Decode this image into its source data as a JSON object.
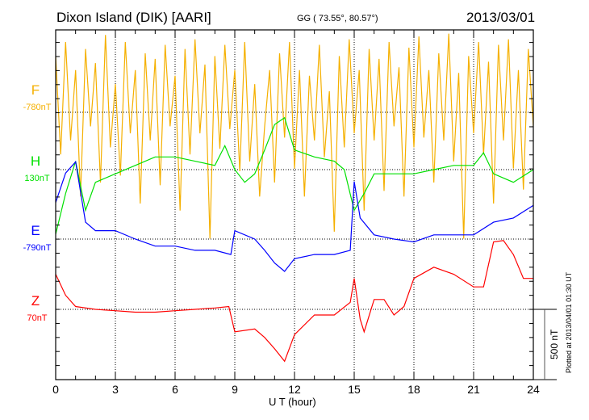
{
  "header": {
    "station": "Dixon Island (DIK)  [AARI]",
    "coords": "GG ( 73.55°,  80.57°)",
    "date": "2013/03/01"
  },
  "footer": {
    "plotted": "Plotted at 2013/04/01 01:30 UT"
  },
  "chart_data": {
    "type": "line",
    "xlabel": "U T (hour)",
    "xlim": [
      0,
      24
    ],
    "xticks": [
      "0",
      "3",
      "6",
      "9",
      "12",
      "15",
      "18",
      "21",
      "24"
    ],
    "scale_bar": "500 nT",
    "nT_per_minor_tick": 100,
    "series": [
      {
        "name": "F",
        "baseline": "-780nT",
        "color": "#f5b000",
        "x_step": 0.25,
        "values": [
          400,
          -300,
          500,
          -200,
          300,
          -600,
          450,
          -100,
          350,
          -500,
          550,
          -250,
          200,
          -450,
          500,
          -150,
          300,
          -650,
          420,
          -200,
          380,
          -520,
          480,
          -100,
          260,
          -700,
          450,
          -300,
          520,
          -150,
          340,
          -900,
          400,
          -260,
          480,
          -120,
          300,
          -420,
          500,
          -350,
          200,
          -600,
          -100,
          300,
          -500,
          420,
          -180,
          500,
          -400,
          300,
          -600,
          260,
          -200,
          480,
          -320,
          150,
          -850,
          400,
          -250,
          520,
          -150,
          300,
          -700,
          450,
          -200,
          380,
          -560,
          500,
          -100,
          320,
          -600,
          460,
          -250,
          540,
          -180,
          300,
          -500,
          420,
          -200,
          560,
          -350,
          280,
          -900,
          400,
          -150,
          500,
          -300,
          360,
          -650,
          480,
          -200,
          520,
          -400,
          300,
          -550,
          450,
          -100
        ]
      },
      {
        "name": "H",
        "baseline": "130nT",
        "color": "#00e000",
        "points": [
          [
            0,
            -460
          ],
          [
            0.5,
            -170
          ],
          [
            1,
            60
          ],
          [
            1.5,
            -290
          ],
          [
            2,
            -90
          ],
          [
            3,
            -30
          ],
          [
            4,
            30
          ],
          [
            5,
            90
          ],
          [
            6,
            90
          ],
          [
            7,
            60
          ],
          [
            8,
            30
          ],
          [
            8.5,
            170
          ],
          [
            9,
            0
          ],
          [
            9.5,
            -90
          ],
          [
            10,
            -30
          ],
          [
            10.5,
            140
          ],
          [
            11,
            320
          ],
          [
            11.5,
            370
          ],
          [
            12,
            140
          ],
          [
            13,
            90
          ],
          [
            14,
            60
          ],
          [
            14.5,
            0
          ],
          [
            15,
            -290
          ],
          [
            15.5,
            -170
          ],
          [
            16,
            -30
          ],
          [
            17,
            -30
          ],
          [
            18,
            -30
          ],
          [
            19,
            0
          ],
          [
            20,
            30
          ],
          [
            21,
            30
          ],
          [
            21.5,
            120
          ],
          [
            22,
            -30
          ],
          [
            23,
            -90
          ],
          [
            24,
            0
          ]
        ]
      },
      {
        "name": "E",
        "baseline": "-790nT",
        "color": "#0000ff",
        "points": [
          [
            0,
            260
          ],
          [
            0.5,
            470
          ],
          [
            1,
            550
          ],
          [
            1.5,
            120
          ],
          [
            2,
            60
          ],
          [
            3,
            60
          ],
          [
            4,
            0
          ],
          [
            5,
            -50
          ],
          [
            6,
            -50
          ],
          [
            7,
            -80
          ],
          [
            8,
            -80
          ],
          [
            8.8,
            -110
          ],
          [
            9,
            60
          ],
          [
            10,
            0
          ],
          [
            10.5,
            -80
          ],
          [
            11,
            -170
          ],
          [
            11.5,
            -230
          ],
          [
            12,
            -140
          ],
          [
            13,
            -110
          ],
          [
            14,
            -110
          ],
          [
            14.8,
            -80
          ],
          [
            15,
            410
          ],
          [
            15.3,
            150
          ],
          [
            16,
            30
          ],
          [
            17,
            0
          ],
          [
            18,
            -20
          ],
          [
            19,
            30
          ],
          [
            20,
            30
          ],
          [
            21,
            30
          ],
          [
            22,
            120
          ],
          [
            23,
            150
          ],
          [
            24,
            240
          ]
        ]
      },
      {
        "name": "Z",
        "baseline": "70nT",
        "color": "#ff0000",
        "points": [
          [
            0,
            250
          ],
          [
            0.5,
            100
          ],
          [
            1,
            20
          ],
          [
            2,
            0
          ],
          [
            3,
            -10
          ],
          [
            4,
            -20
          ],
          [
            5,
            -20
          ],
          [
            6,
            -10
          ],
          [
            7,
            0
          ],
          [
            8,
            10
          ],
          [
            8.7,
            20
          ],
          [
            9,
            -160
          ],
          [
            10,
            -140
          ],
          [
            10.5,
            -200
          ],
          [
            11,
            -280
          ],
          [
            11.5,
            -370
          ],
          [
            12,
            -180
          ],
          [
            13,
            -40
          ],
          [
            14,
            -40
          ],
          [
            14.8,
            50
          ],
          [
            15,
            220
          ],
          [
            15.3,
            -70
          ],
          [
            15.5,
            -160
          ],
          [
            16,
            70
          ],
          [
            16.5,
            70
          ],
          [
            17,
            -40
          ],
          [
            17.5,
            20
          ],
          [
            18,
            220
          ],
          [
            19,
            300
          ],
          [
            20,
            250
          ],
          [
            21,
            160
          ],
          [
            21.5,
            160
          ],
          [
            22,
            480
          ],
          [
            22.5,
            490
          ],
          [
            23,
            390
          ],
          [
            23.5,
            220
          ],
          [
            24,
            220
          ]
        ]
      }
    ]
  }
}
